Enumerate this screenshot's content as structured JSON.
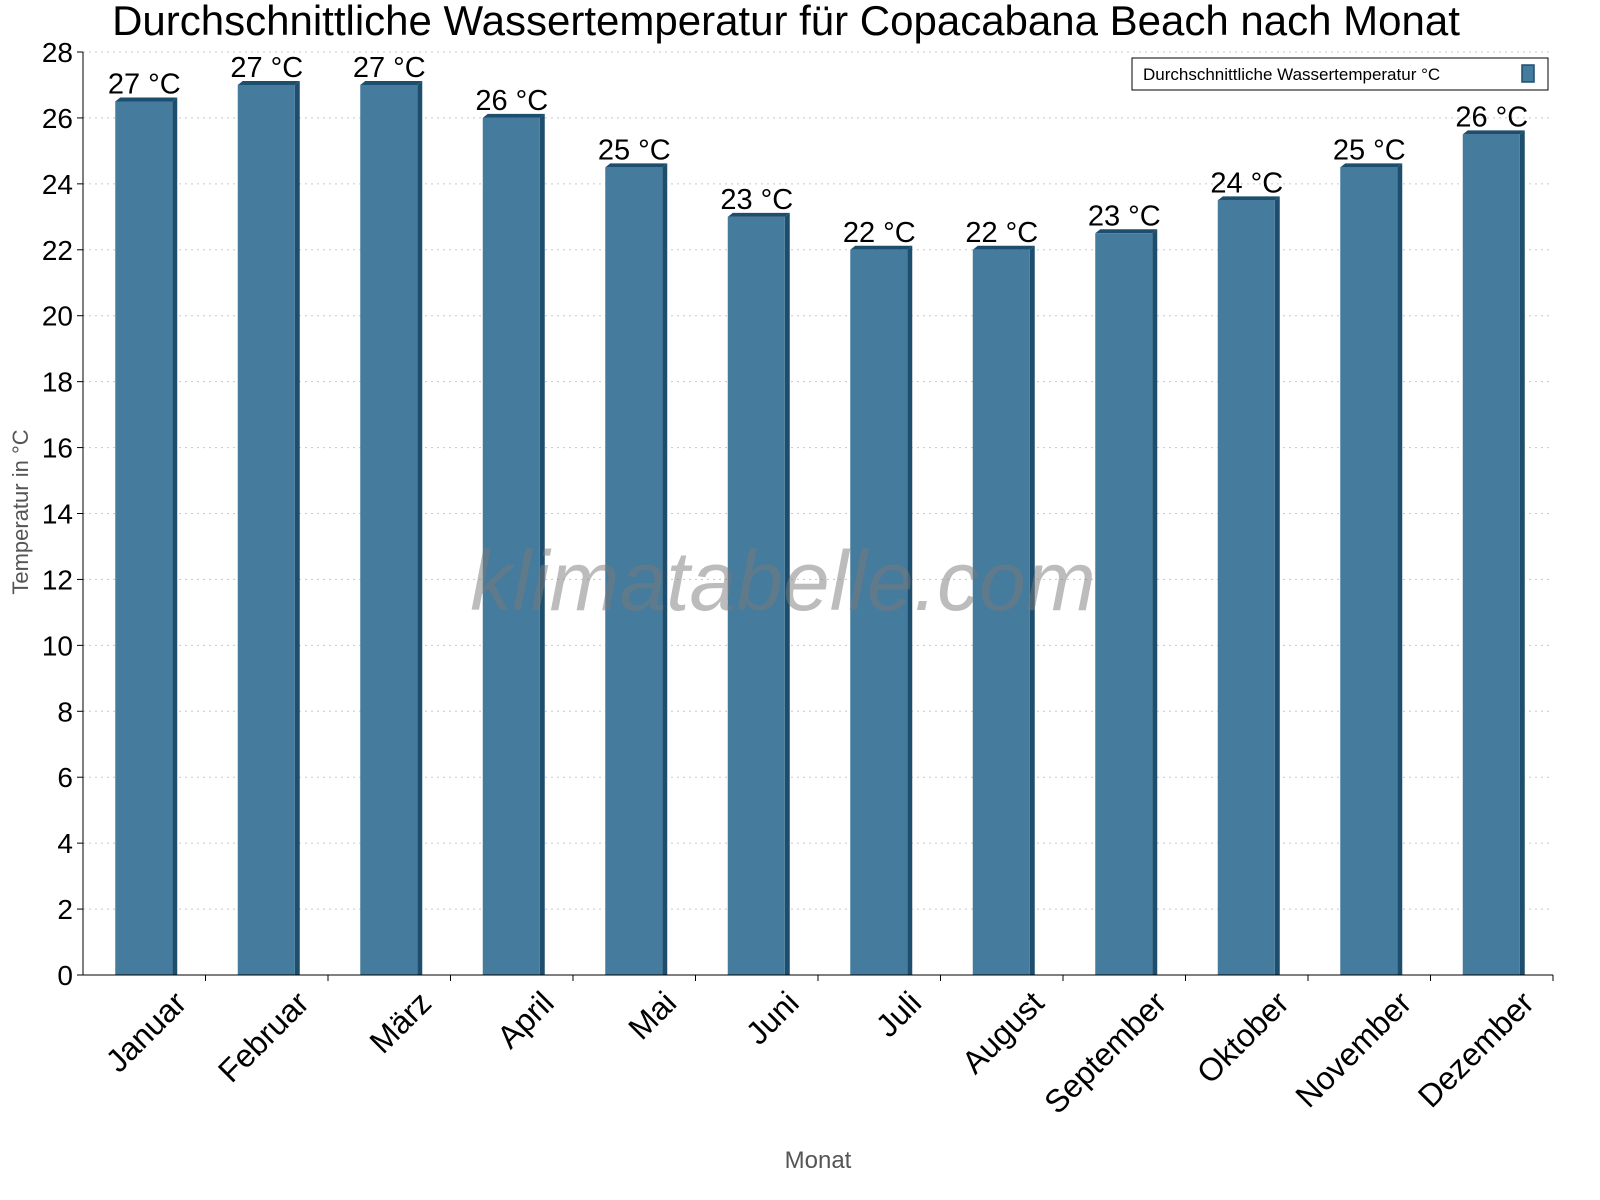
{
  "chart_data": {
    "type": "bar",
    "title": "Durchschnittliche Wassertemperatur für Copacabana Beach nach Monat",
    "xlabel": "Monat",
    "ylabel": "Temperatur in °C",
    "ylim": [
      0,
      28
    ],
    "yticks": [
      0,
      2,
      4,
      6,
      8,
      10,
      12,
      14,
      16,
      18,
      20,
      22,
      24,
      26,
      28
    ],
    "grid": true,
    "legend_position": "top-right",
    "categories": [
      "Januar",
      "Februar",
      "März",
      "April",
      "Mai",
      "Juni",
      "Juli",
      "August",
      "September",
      "Oktober",
      "November",
      "Dezember"
    ],
    "series": [
      {
        "name": "Durchschnittliche Wassertemperatur °C",
        "values": [
          26.5,
          27,
          27,
          26,
          24.5,
          23,
          22,
          22,
          22.5,
          23.5,
          24.5,
          25.5
        ],
        "data_labels": [
          "27 °C",
          "27 °C",
          "27 °C",
          "26 °C",
          "25 °C",
          "23 °C",
          "22 °C",
          "22 °C",
          "23 °C",
          "24 °C",
          "25 °C",
          "26 °C"
        ],
        "color": "#457b9d",
        "side_color": "#1d4e6e"
      }
    ],
    "watermark": "klimatabelle.com"
  }
}
